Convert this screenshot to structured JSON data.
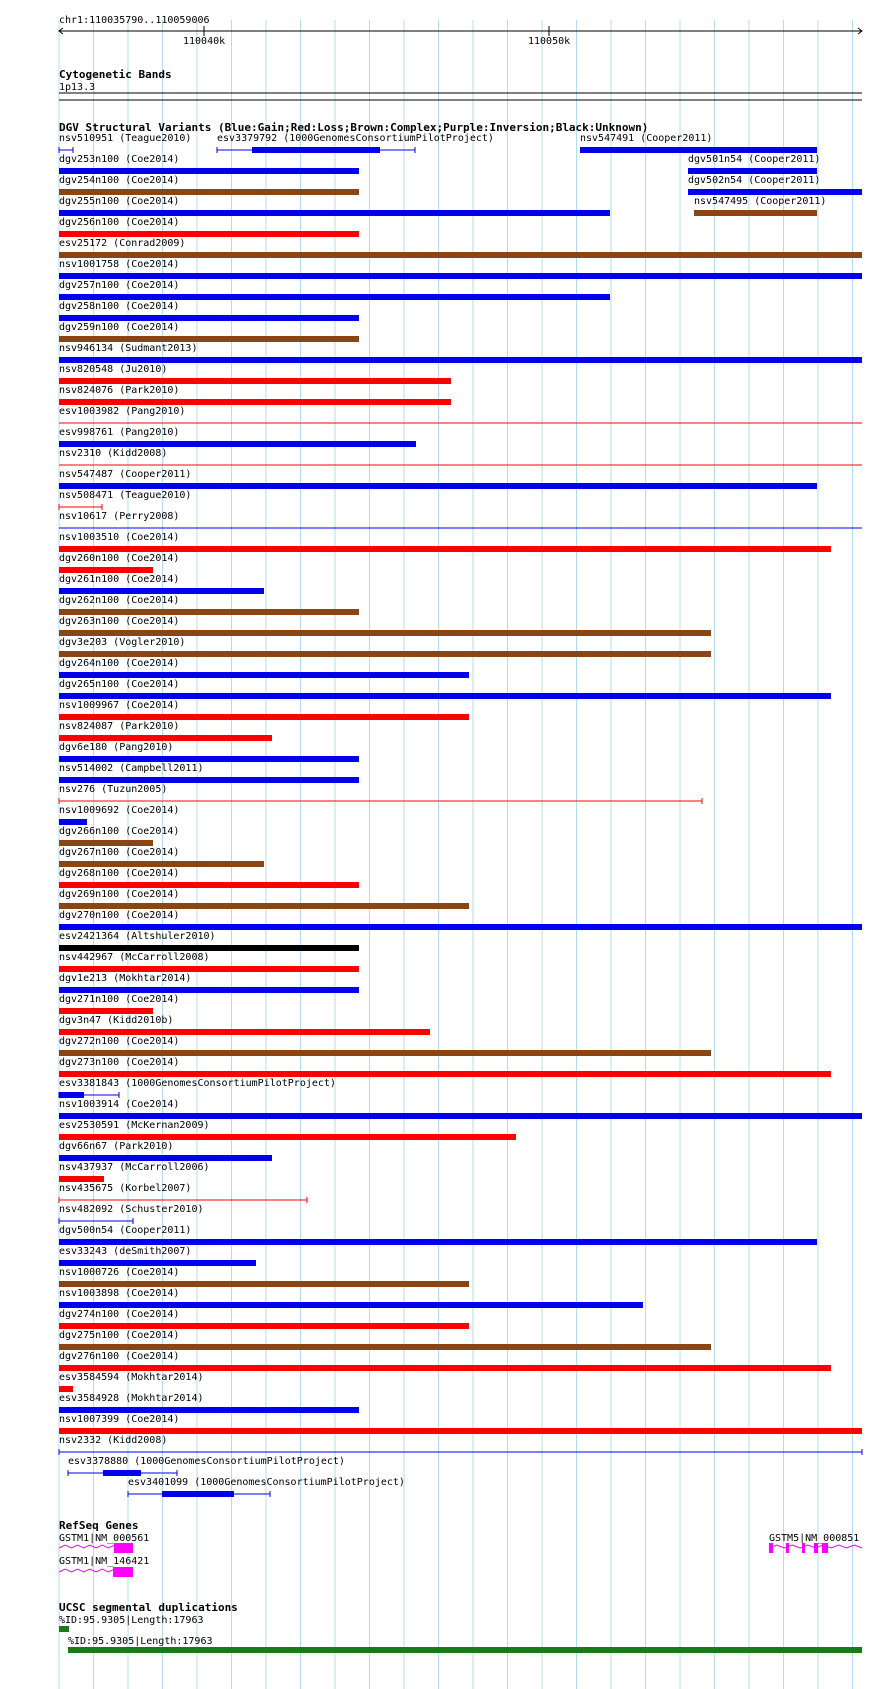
{
  "ruler": {
    "position": "chr1:110035790..110059006",
    "ticks": [
      "110040k",
      "110050k"
    ]
  },
  "cytoband": {
    "title": "Cytogenetic Bands",
    "band": "1p13.3"
  },
  "dgv": {
    "title": "DGV Structural Variants (Blue:Gain;Red:Loss;Brown:Complex;Purple:Inversion;Black:Unknown)",
    "colors": {
      "gain": "#0000ee",
      "loss": "#ff0000",
      "complex": "#8b4513",
      "unknown": "#000000"
    },
    "rows": [
      {
        "label": "nsv510951 (Teague2010)",
        "color": "#0000ee",
        "style": "capped"
      },
      {
        "label": "esv3379792 (1000GenomesConsortiumPilotProject)",
        "color": "#0000ee",
        "style": "multi"
      },
      {
        "label": "nsv547491 (Cooper2011)",
        "color": "#0000ee",
        "style": "thick"
      },
      {
        "label": "dgv253n100 (Coe2014)",
        "color": "#0000ee",
        "style": "thick"
      },
      {
        "label": "dgv501n54 (Cooper2011)",
        "color": "#0000ee",
        "style": "thick"
      },
      {
        "label": "dgv254n100 (Coe2014)",
        "color": "#8b4513",
        "style": "thick"
      },
      {
        "label": "dgv502n54 (Cooper2011)",
        "color": "#0000ee",
        "style": "thick"
      },
      {
        "label": "dgv255n100 (Coe2014)",
        "color": "#0000ee",
        "style": "thick"
      },
      {
        "label": "nsv547495 (Cooper2011)",
        "color": "#8b4513",
        "style": "thick"
      },
      {
        "label": "dgv256n100 (Coe2014)",
        "color": "#ff0000",
        "style": "thick"
      },
      {
        "label": "esv25172 (Conrad2009)",
        "color": "#8b4513",
        "style": "thick"
      },
      {
        "label": "nsv1001758 (Coe2014)",
        "color": "#0000ee",
        "style": "thick"
      },
      {
        "label": "dgv257n100 (Coe2014)",
        "color": "#0000ee",
        "style": "thick"
      },
      {
        "label": "dgv258n100 (Coe2014)",
        "color": "#0000ee",
        "style": "thick"
      },
      {
        "label": "dgv259n100 (Coe2014)",
        "color": "#8b4513",
        "style": "thick"
      },
      {
        "label": "nsv946134 (Sudmant2013)",
        "color": "#0000ee",
        "style": "thick"
      },
      {
        "label": "nsv820548 (Ju2010)",
        "color": "#ff0000",
        "style": "thick"
      },
      {
        "label": "nsv824076 (Park2010)",
        "color": "#ff0000",
        "style": "thick"
      },
      {
        "label": "esv1003982 (Pang2010)",
        "color": "#ff0000",
        "style": "thin"
      },
      {
        "label": "esv998761 (Pang2010)",
        "color": "#0000ee",
        "style": "thick"
      },
      {
        "label": "nsv2310 (Kidd2008)",
        "color": "#ff0000",
        "style": "thin"
      },
      {
        "label": "nsv547487 (Cooper2011)",
        "color": "#0000ee",
        "style": "thick"
      },
      {
        "label": "nsv508471 (Teague2010)",
        "color": "#ff0000",
        "style": "capped"
      },
      {
        "label": "nsv10617 (Perry2008)",
        "color": "#0000ee",
        "style": "thin"
      },
      {
        "label": "nsv1003510 (Coe2014)",
        "color": "#ff0000",
        "style": "thick"
      },
      {
        "label": "dgv260n100 (Coe2014)",
        "color": "#ff0000",
        "style": "thick"
      },
      {
        "label": "dgv261n100 (Coe2014)",
        "color": "#0000ee",
        "style": "thick"
      },
      {
        "label": "dgv262n100 (Coe2014)",
        "color": "#8b4513",
        "style": "thick"
      },
      {
        "label": "dgv263n100 (Coe2014)",
        "color": "#8b4513",
        "style": "thick"
      },
      {
        "label": "dgv3e203 (Vogler2010)",
        "color": "#8b4513",
        "style": "thick"
      },
      {
        "label": "dgv264n100 (Coe2014)",
        "color": "#0000ee",
        "style": "thick"
      },
      {
        "label": "dgv265n100 (Coe2014)",
        "color": "#0000ee",
        "style": "thick"
      },
      {
        "label": "nsv1009967 (Coe2014)",
        "color": "#ff0000",
        "style": "thick"
      },
      {
        "label": "nsv824087 (Park2010)",
        "color": "#ff0000",
        "style": "thick"
      },
      {
        "label": "dgv6e180 (Pang2010)",
        "color": "#0000ee",
        "style": "thick"
      },
      {
        "label": "nsv514002 (Campbell2011)",
        "color": "#0000ee",
        "style": "thick"
      },
      {
        "label": "nsv276 (Tuzun2005)",
        "color": "#ff0000",
        "style": "capped"
      },
      {
        "label": "nsv1009692 (Coe2014)",
        "color": "#0000ee",
        "style": "thick"
      },
      {
        "label": "dgv266n100 (Coe2014)",
        "color": "#8b4513",
        "style": "thick"
      },
      {
        "label": "dgv267n100 (Coe2014)",
        "color": "#8b4513",
        "style": "thick"
      },
      {
        "label": "dgv268n100 (Coe2014)",
        "color": "#ff0000",
        "style": "thick"
      },
      {
        "label": "dgv269n100 (Coe2014)",
        "color": "#8b4513",
        "style": "thick"
      },
      {
        "label": "dgv270n100 (Coe2014)",
        "color": "#0000ee",
        "style": "thick"
      },
      {
        "label": "esv2421364 (Altshuler2010)",
        "color": "#000000",
        "style": "thick"
      },
      {
        "label": "nsv442967 (McCarroll2008)",
        "color": "#ff0000",
        "style": "thick"
      },
      {
        "label": "dgv1e213 (Mokhtar2014)",
        "color": "#0000ee",
        "style": "thick"
      },
      {
        "label": "dgv271n100 (Coe2014)",
        "color": "#ff0000",
        "style": "thick"
      },
      {
        "label": "dgv3n47 (Kidd2010b)",
        "color": "#ff0000",
        "style": "thick"
      },
      {
        "label": "dgv272n100 (Coe2014)",
        "color": "#8b4513",
        "style": "thick"
      },
      {
        "label": "dgv273n100 (Coe2014)",
        "color": "#ff0000",
        "style": "thick"
      },
      {
        "label": "esv3381843 (1000GenomesConsortiumPilotProject)",
        "color": "#0000ee",
        "style": "multi"
      },
      {
        "label": "nsv1003914 (Coe2014)",
        "color": "#0000ee",
        "style": "thick"
      },
      {
        "label": "esv2530591 (McKernan2009)",
        "color": "#ff0000",
        "style": "thick"
      },
      {
        "label": "dgv66n67 (Park2010)",
        "color": "#0000ee",
        "style": "thick"
      },
      {
        "label": "nsv437937 (McCarroll2006)",
        "color": "#ff0000",
        "style": "thick"
      },
      {
        "label": "nsv435675 (Korbel2007)",
        "color": "#ff0000",
        "style": "capped"
      },
      {
        "label": "nsv482092 (Schuster2010)",
        "color": "#0000ee",
        "style": "capped"
      },
      {
        "label": "dgv500n54 (Cooper2011)",
        "color": "#0000ee",
        "style": "thick"
      },
      {
        "label": "esv33243 (deSmith2007)",
        "color": "#0000ee",
        "style": "thick"
      },
      {
        "label": "nsv1000726 (Coe2014)",
        "color": "#8b4513",
        "style": "thick"
      },
      {
        "label": "nsv1003898 (Coe2014)",
        "color": "#0000ee",
        "style": "thick"
      },
      {
        "label": "dgv274n100 (Coe2014)",
        "color": "#ff0000",
        "style": "thick"
      },
      {
        "label": "dgv275n100 (Coe2014)",
        "color": "#8b4513",
        "style": "thick"
      },
      {
        "label": "dgv276n100 (Coe2014)",
        "color": "#ff0000",
        "style": "thick"
      },
      {
        "label": "esv3584594 (Mokhtar2014)",
        "color": "#ff0000",
        "style": "thick"
      },
      {
        "label": "esv3584928 (Mokhtar2014)",
        "color": "#0000ee",
        "style": "thick"
      },
      {
        "label": "nsv1007399 (Coe2014)",
        "color": "#ff0000",
        "style": "thick"
      },
      {
        "label": "nsv2332 (Kidd2008)",
        "color": "#0000ee",
        "style": "capped"
      },
      {
        "label": "esv3378880 (1000GenomesConsortiumPilotProject)",
        "color": "#0000ee",
        "style": "multi"
      },
      {
        "label": "esv3401099 (1000GenomesConsortiumPilotProject)",
        "color": "#0000ee",
        "style": "multi"
      }
    ]
  },
  "refseq": {
    "title": "RefSeq Genes",
    "color": "#ff00ff",
    "genes": [
      {
        "label": "GSTM1|NM_000561"
      },
      {
        "label": "GSTM1|NM_146421"
      },
      {
        "label": "GSTM5|NM_000851"
      }
    ]
  },
  "segdup": {
    "title": "UCSC segmental duplications",
    "color": "#1a7a1a",
    "items": [
      {
        "label": "%ID:95.9305|Length:17963"
      },
      {
        "label": "%ID:95.9305|Length:17963"
      }
    ]
  }
}
